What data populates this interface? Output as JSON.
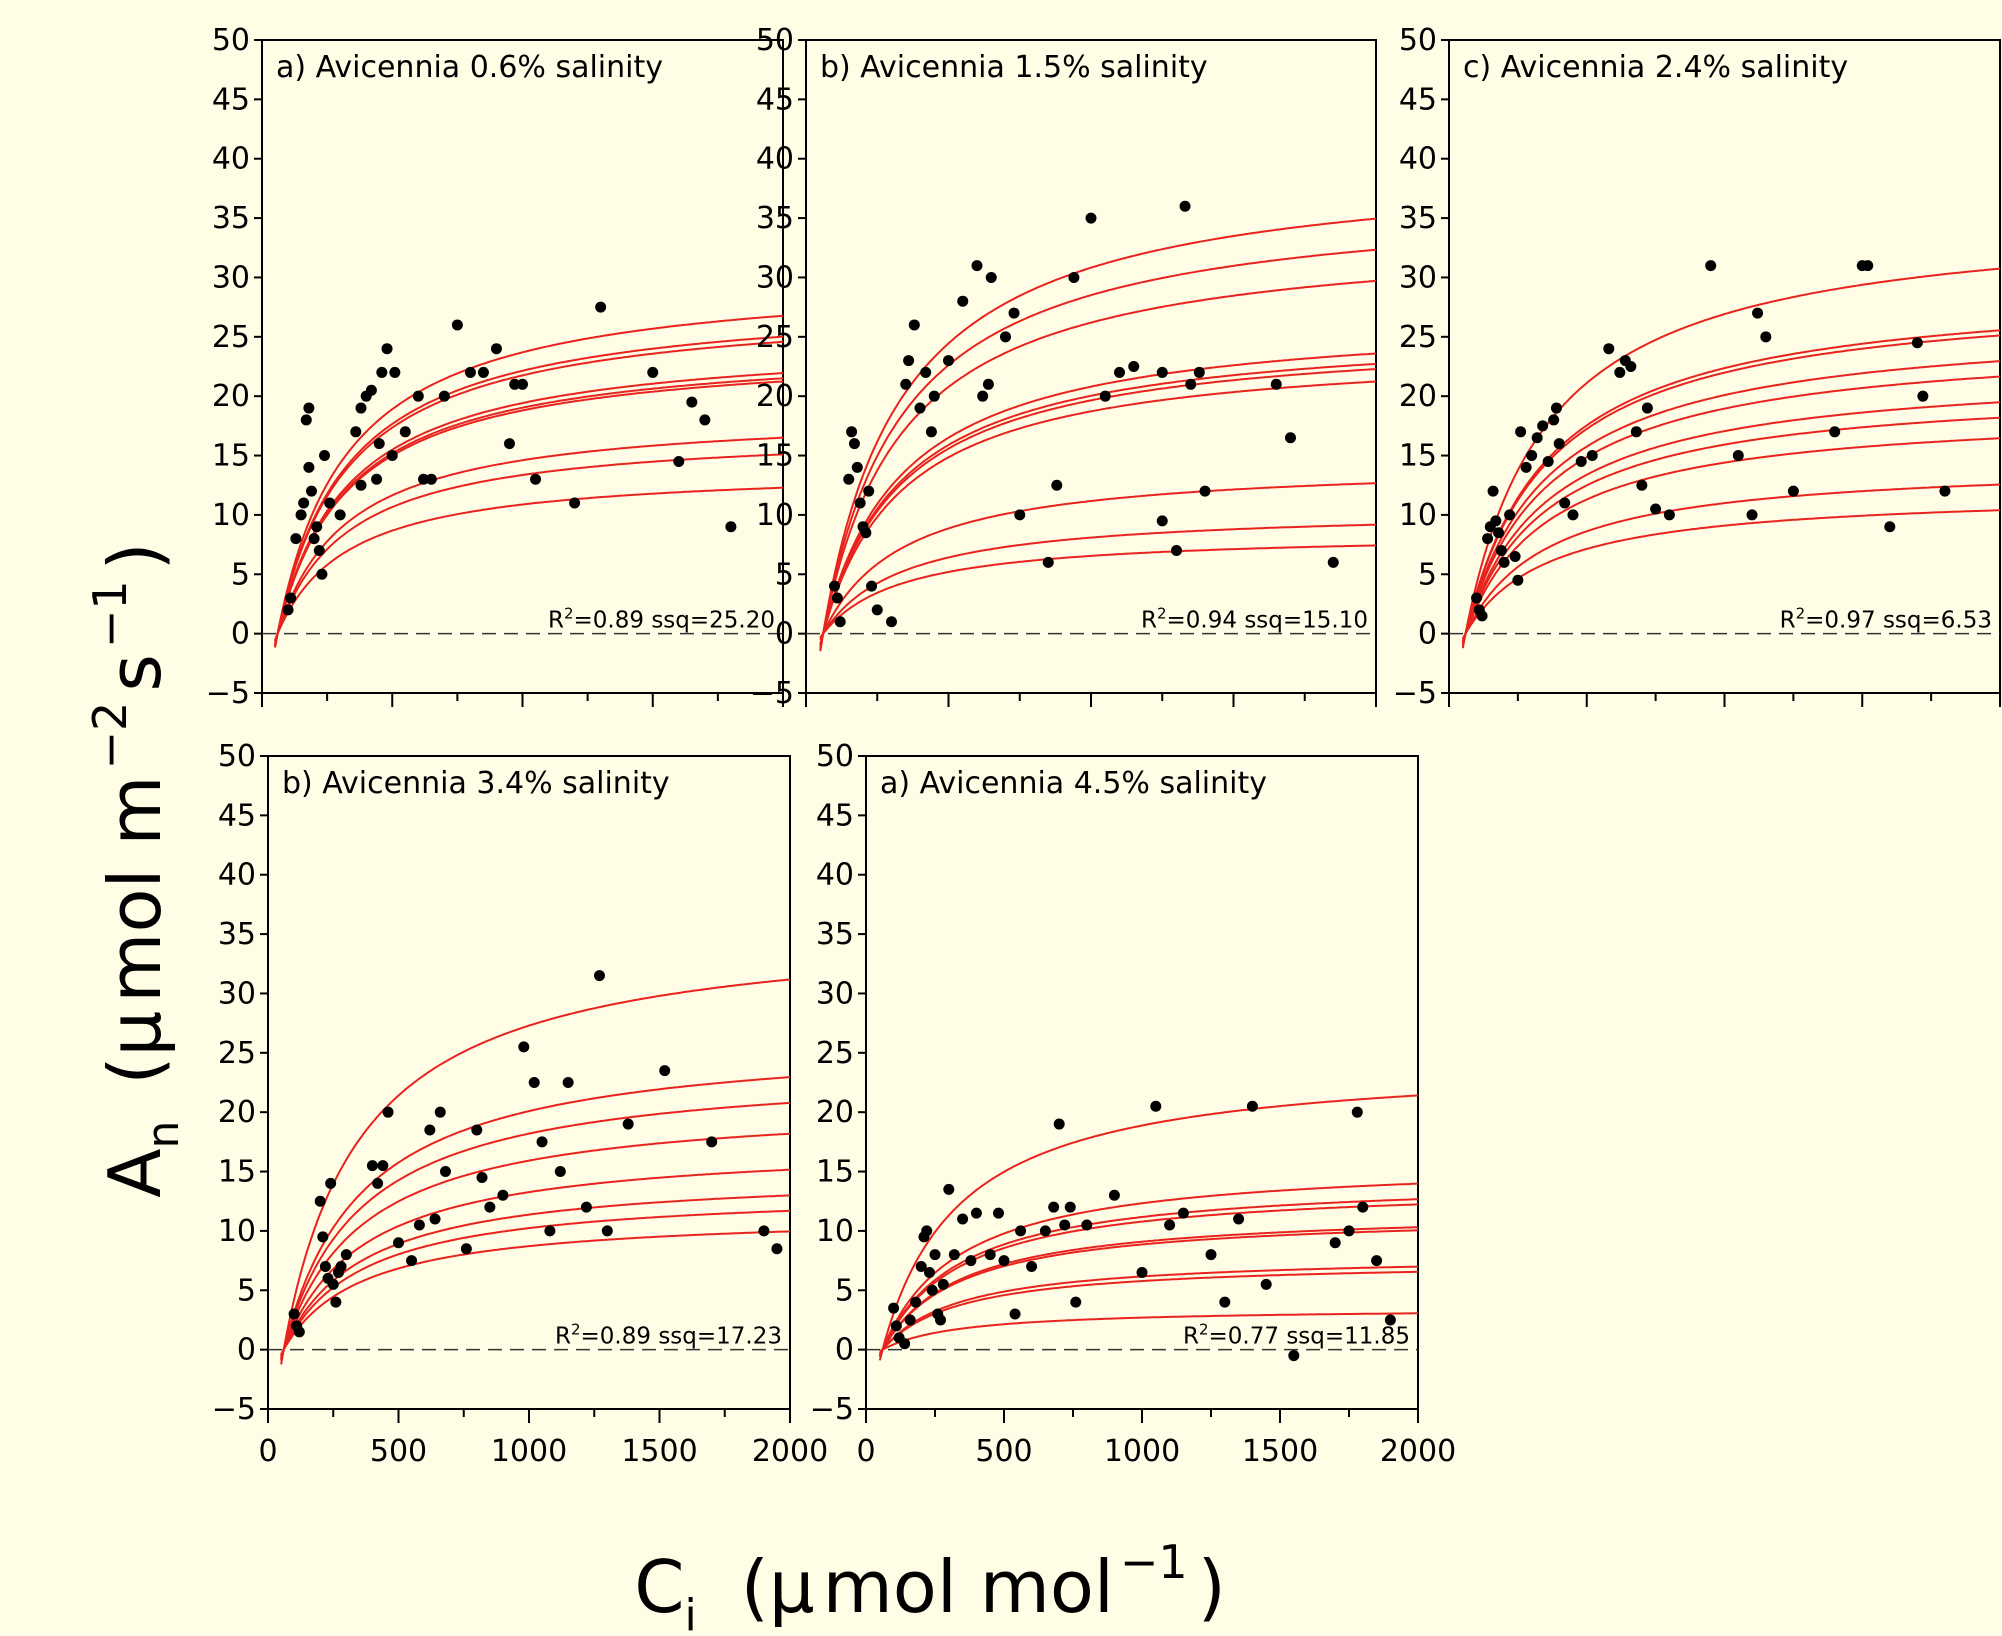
{
  "figure": {
    "ylabel": {
      "main": "A",
      "sub": "n",
      "unit_open": "(",
      "mu": "μ",
      "unit": "mol m",
      "exp1": "−2",
      "s": "s",
      "exp2": "−1",
      "unit_close": ")"
    },
    "xlabel": {
      "main": "C",
      "sub": "i",
      "unit_open": "(",
      "mu": "μ",
      "unit": "mol mol",
      "exp": "−1",
      "unit_close": ")"
    },
    "colors": {
      "background": "#fffde6",
      "curve": "#e8231e",
      "points": "#000000"
    }
  },
  "chart_data": [
    {
      "type": "scatter",
      "title": "a) Avicennia 0.6% salinity",
      "xlim": [
        0,
        2000
      ],
      "ylim": [
        -5,
        50
      ],
      "r2_label": "R",
      "r2_sup": "2",
      "r2_value": "=0.89",
      "ssq": "ssq=25.20",
      "curves": [
        {
          "amax": 30.5,
          "k": 210
        },
        {
          "amax": 28.5,
          "k": 210
        },
        {
          "amax": 28.0,
          "k": 210
        },
        {
          "amax": 25.0,
          "k": 210
        },
        {
          "amax": 24.5,
          "k": 210
        },
        {
          "amax": 24.2,
          "k": 210
        },
        {
          "amax": 18.8,
          "k": 210
        },
        {
          "amax": 17.2,
          "k": 210
        },
        {
          "amax": 14.0,
          "k": 210
        }
      ],
      "points": [
        [
          100,
          2
        ],
        [
          110,
          3
        ],
        [
          130,
          8
        ],
        [
          150,
          10
        ],
        [
          160,
          11
        ],
        [
          170,
          18
        ],
        [
          180,
          19
        ],
        [
          180,
          14
        ],
        [
          190,
          12
        ],
        [
          200,
          8
        ],
        [
          210,
          9
        ],
        [
          220,
          7
        ],
        [
          230,
          5
        ],
        [
          240,
          15
        ],
        [
          260,
          11
        ],
        [
          300,
          10
        ],
        [
          360,
          17
        ],
        [
          380,
          12.5
        ],
        [
          380,
          19
        ],
        [
          400,
          20
        ],
        [
          420,
          20.5
        ],
        [
          440,
          13
        ],
        [
          450,
          16
        ],
        [
          460,
          22
        ],
        [
          480,
          24
        ],
        [
          500,
          15
        ],
        [
          510,
          22
        ],
        [
          550,
          17
        ],
        [
          600,
          20
        ],
        [
          620,
          13
        ],
        [
          650,
          13
        ],
        [
          700,
          20
        ],
        [
          750,
          26
        ],
        [
          800,
          22
        ],
        [
          850,
          22
        ],
        [
          900,
          24
        ],
        [
          950,
          16
        ],
        [
          970,
          21
        ],
        [
          1000,
          21
        ],
        [
          1050,
          13
        ],
        [
          1200,
          11
        ],
        [
          1300,
          27.5
        ],
        [
          1500,
          22
        ],
        [
          1600,
          14.5
        ],
        [
          1650,
          19.5
        ],
        [
          1700,
          18
        ],
        [
          1800,
          9
        ]
      ]
    },
    {
      "type": "scatter",
      "title": "b) Avicennia 1.5% salinity",
      "xlim": [
        0,
        2000
      ],
      "ylim": [
        -5,
        50
      ],
      "r2_label": "R",
      "r2_sup": "2",
      "r2_value": "=0.94",
      "ssq": "ssq=15.10",
      "curves": [
        {
          "amax": 40.0,
          "k": 220
        },
        {
          "amax": 37.0,
          "k": 220
        },
        {
          "amax": 34.0,
          "k": 220
        },
        {
          "amax": 27.0,
          "k": 220
        },
        {
          "amax": 26.0,
          "k": 220
        },
        {
          "amax": 25.5,
          "k": 220
        },
        {
          "amax": 24.3,
          "k": 220
        },
        {
          "amax": 14.5,
          "k": 220
        },
        {
          "amax": 10.5,
          "k": 220
        },
        {
          "amax": 8.5,
          "k": 220
        }
      ],
      "points": [
        [
          100,
          4
        ],
        [
          110,
          3
        ],
        [
          120,
          1
        ],
        [
          150,
          13
        ],
        [
          160,
          17
        ],
        [
          170,
          16
        ],
        [
          180,
          14
        ],
        [
          190,
          11
        ],
        [
          200,
          9
        ],
        [
          210,
          8.5
        ],
        [
          220,
          12
        ],
        [
          230,
          4
        ],
        [
          250,
          2
        ],
        [
          300,
          1
        ],
        [
          350,
          21
        ],
        [
          360,
          23
        ],
        [
          380,
          26
        ],
        [
          400,
          19
        ],
        [
          420,
          22
        ],
        [
          440,
          17
        ],
        [
          450,
          20
        ],
        [
          500,
          23
        ],
        [
          550,
          28
        ],
        [
          600,
          31
        ],
        [
          620,
          20
        ],
        [
          640,
          21
        ],
        [
          650,
          30
        ],
        [
          700,
          25
        ],
        [
          730,
          27
        ],
        [
          750,
          10
        ],
        [
          850,
          6
        ],
        [
          880,
          12.5
        ],
        [
          940,
          30
        ],
        [
          1000,
          35
        ],
        [
          1050,
          20
        ],
        [
          1100,
          22
        ],
        [
          1150,
          22.5
        ],
        [
          1250,
          22
        ],
        [
          1250,
          9.5
        ],
        [
          1300,
          7
        ],
        [
          1330,
          36
        ],
        [
          1350,
          21
        ],
        [
          1380,
          22
        ],
        [
          1400,
          12
        ],
        [
          1650,
          21
        ],
        [
          1700,
          16.5
        ],
        [
          1850,
          6
        ]
      ]
    },
    {
      "type": "scatter",
      "title": "c) Avicennia 2.4% salinity",
      "xlim": [
        0,
        2000
      ],
      "ylim": [
        -5,
        50
      ],
      "r2_label": "R",
      "r2_sup": "2",
      "r2_value": "=0.97",
      "ssq": "ssq=6.53",
      "curves": [
        {
          "amax": 35.5,
          "k": 240
        },
        {
          "amax": 29.5,
          "k": 240
        },
        {
          "amax": 29.0,
          "k": 240
        },
        {
          "amax": 26.5,
          "k": 240
        },
        {
          "amax": 25.0,
          "k": 240
        },
        {
          "amax": 22.5,
          "k": 240
        },
        {
          "amax": 21.0,
          "k": 240
        },
        {
          "amax": 19.0,
          "k": 240
        },
        {
          "amax": 14.5,
          "k": 240
        },
        {
          "amax": 12.0,
          "k": 240
        }
      ],
      "points": [
        [
          100,
          3
        ],
        [
          110,
          2
        ],
        [
          120,
          1.5
        ],
        [
          140,
          8
        ],
        [
          150,
          9
        ],
        [
          160,
          12
        ],
        [
          170,
          9.5
        ],
        [
          180,
          8.5
        ],
        [
          190,
          7
        ],
        [
          200,
          6
        ],
        [
          220,
          10
        ],
        [
          240,
          6.5
        ],
        [
          250,
          4.5
        ],
        [
          260,
          17
        ],
        [
          280,
          14
        ],
        [
          300,
          15
        ],
        [
          320,
          16.5
        ],
        [
          340,
          17.5
        ],
        [
          360,
          14.5
        ],
        [
          380,
          18
        ],
        [
          390,
          19
        ],
        [
          400,
          16
        ],
        [
          420,
          11
        ],
        [
          450,
          10
        ],
        [
          480,
          14.5
        ],
        [
          520,
          15
        ],
        [
          580,
          24
        ],
        [
          620,
          22
        ],
        [
          640,
          23
        ],
        [
          660,
          22.5
        ],
        [
          680,
          17
        ],
        [
          700,
          12.5
        ],
        [
          720,
          19
        ],
        [
          750,
          10.5
        ],
        [
          800,
          10
        ],
        [
          950,
          31
        ],
        [
          1050,
          15
        ],
        [
          1100,
          10
        ],
        [
          1120,
          27
        ],
        [
          1150,
          25
        ],
        [
          1250,
          12
        ],
        [
          1400,
          17
        ],
        [
          1500,
          31
        ],
        [
          1520,
          31
        ],
        [
          1600,
          9
        ],
        [
          1700,
          24.5
        ],
        [
          1720,
          20
        ],
        [
          1800,
          12
        ]
      ]
    },
    {
      "type": "scatter",
      "title": "b) Avicennia 3.4% salinity",
      "xlim": [
        0,
        2000
      ],
      "ylim": [
        -5,
        50
      ],
      "r2_label": "R",
      "r2_sup": "2",
      "r2_value": "=0.89",
      "ssq": "ssq=17.23",
      "curves": [
        {
          "amax": 36.0,
          "k": 240
        },
        {
          "amax": 26.5,
          "k": 240
        },
        {
          "amax": 24.0,
          "k": 240
        },
        {
          "amax": 21.0,
          "k": 240
        },
        {
          "amax": 17.5,
          "k": 240
        },
        {
          "amax": 15.0,
          "k": 240
        },
        {
          "amax": 13.5,
          "k": 240
        },
        {
          "amax": 11.5,
          "k": 240
        }
      ],
      "points": [
        [
          100,
          3
        ],
        [
          110,
          2
        ],
        [
          120,
          1.5
        ],
        [
          200,
          12.5
        ],
        [
          210,
          9.5
        ],
        [
          220,
          7
        ],
        [
          230,
          6
        ],
        [
          240,
          14
        ],
        [
          250,
          5.5
        ],
        [
          260,
          4
        ],
        [
          270,
          6.5
        ],
        [
          280,
          7
        ],
        [
          300,
          8
        ],
        [
          400,
          15.5
        ],
        [
          420,
          14
        ],
        [
          440,
          15.5
        ],
        [
          460,
          20
        ],
        [
          500,
          9
        ],
        [
          550,
          7.5
        ],
        [
          580,
          10.5
        ],
        [
          620,
          18.5
        ],
        [
          640,
          11
        ],
        [
          660,
          20
        ],
        [
          680,
          15
        ],
        [
          760,
          8.5
        ],
        [
          800,
          18.5
        ],
        [
          820,
          14.5
        ],
        [
          850,
          12
        ],
        [
          900,
          13
        ],
        [
          980,
          25.5
        ],
        [
          1020,
          22.5
        ],
        [
          1050,
          17.5
        ],
        [
          1080,
          10
        ],
        [
          1120,
          15
        ],
        [
          1150,
          22.5
        ],
        [
          1220,
          12
        ],
        [
          1270,
          31.5
        ],
        [
          1300,
          10
        ],
        [
          1380,
          19
        ],
        [
          1520,
          23.5
        ],
        [
          1700,
          17.5
        ],
        [
          1900,
          10
        ],
        [
          1950,
          8.5
        ]
      ]
    },
    {
      "type": "scatter",
      "title": "a) Avicennia 4.5% salinity",
      "xlim": [
        0,
        2000
      ],
      "ylim": [
        -5,
        50
      ],
      "r2_label": "R",
      "r2_sup": "2",
      "r2_value": "=0.77",
      "ssq": "ssq=11.85",
      "curves": [
        {
          "amax": 24.5,
          "k": 220
        },
        {
          "amax": 16.0,
          "k": 220
        },
        {
          "amax": 14.5,
          "k": 220
        },
        {
          "amax": 14.0,
          "k": 220
        },
        {
          "amax": 11.8,
          "k": 220
        },
        {
          "amax": 11.5,
          "k": 220
        },
        {
          "amax": 8.0,
          "k": 220
        },
        {
          "amax": 7.5,
          "k": 220
        },
        {
          "amax": 3.5,
          "k": 220
        }
      ],
      "points": [
        [
          100,
          3.5
        ],
        [
          110,
          2
        ],
        [
          120,
          1
        ],
        [
          140,
          0.5
        ],
        [
          160,
          2.5
        ],
        [
          180,
          4
        ],
        [
          200,
          7
        ],
        [
          210,
          9.5
        ],
        [
          220,
          10
        ],
        [
          230,
          6.5
        ],
        [
          240,
          5
        ],
        [
          250,
          8
        ],
        [
          260,
          3
        ],
        [
          270,
          2.5
        ],
        [
          280,
          5.5
        ],
        [
          300,
          13.5
        ],
        [
          320,
          8
        ],
        [
          350,
          11
        ],
        [
          380,
          7.5
        ],
        [
          400,
          11.5
        ],
        [
          450,
          8
        ],
        [
          480,
          11.5
        ],
        [
          500,
          7.5
        ],
        [
          540,
          3
        ],
        [
          560,
          10
        ],
        [
          600,
          7
        ],
        [
          650,
          10
        ],
        [
          680,
          12
        ],
        [
          700,
          19
        ],
        [
          720,
          10.5
        ],
        [
          740,
          12
        ],
        [
          760,
          4
        ],
        [
          800,
          10.5
        ],
        [
          900,
          13
        ],
        [
          1000,
          6.5
        ],
        [
          1050,
          20.5
        ],
        [
          1100,
          10.5
        ],
        [
          1150,
          11.5
        ],
        [
          1250,
          8
        ],
        [
          1300,
          4
        ],
        [
          1350,
          11
        ],
        [
          1400,
          20.5
        ],
        [
          1450,
          5.5
        ],
        [
          1550,
          -0.5
        ],
        [
          1700,
          9
        ],
        [
          1750,
          10
        ],
        [
          1780,
          20
        ],
        [
          1800,
          12
        ],
        [
          1850,
          7.5
        ],
        [
          1900,
          2.5
        ]
      ]
    }
  ]
}
